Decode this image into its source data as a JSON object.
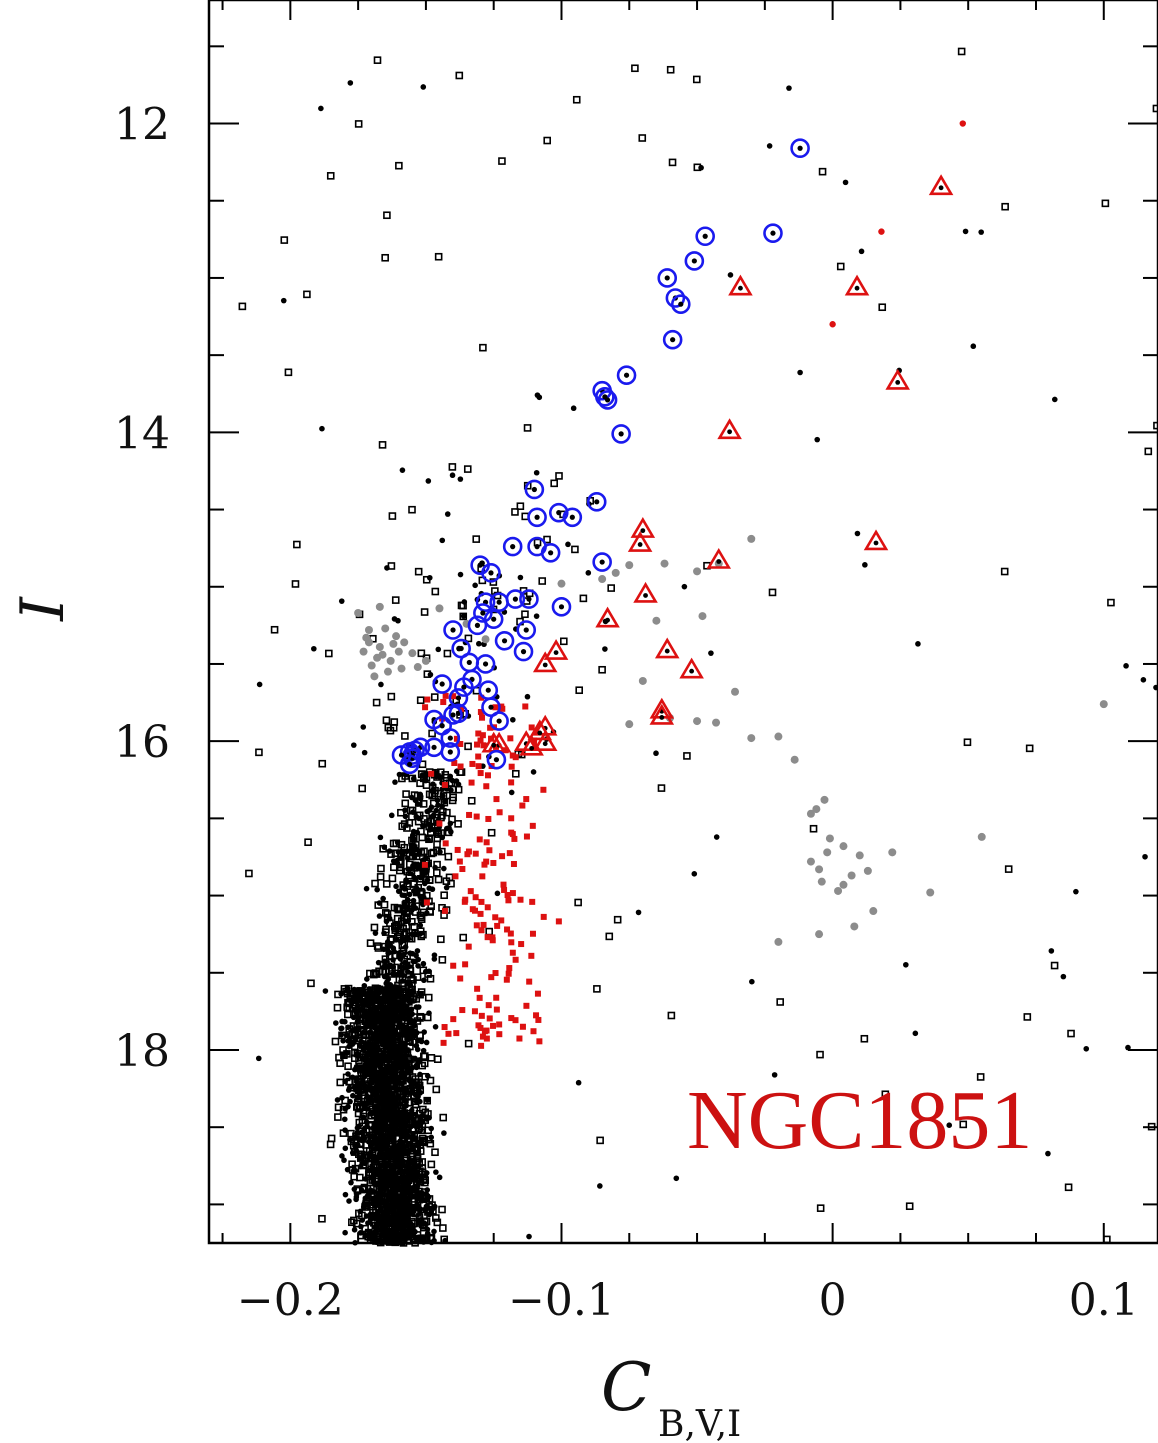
{
  "chart_data": {
    "type": "scatter",
    "title": "NGC1851",
    "xlabel": "C",
    "xlabel_subscript": "B,V,I",
    "ylabel": "I",
    "xlim": [
      -0.23,
      0.12
    ],
    "ylim": [
      19.25,
      11.2
    ],
    "y_inverted": true,
    "grid": false,
    "x_ticks": [
      -0.2,
      -0.1,
      0,
      0.1
    ],
    "x_tick_labels": [
      "−0.2",
      "−0.1",
      "0",
      "0.1"
    ],
    "y_ticks": [
      12,
      14,
      16,
      18
    ],
    "y_tick_labels": [
      "12",
      "14",
      "16",
      "18"
    ],
    "colors": {
      "black": "#000000",
      "red": "#dd1111",
      "blue": "#1a1aee",
      "gray": "#8c8c8c",
      "label": "#cc1111"
    },
    "series": [
      {
        "marker": "circled dot",
        "color": "blue",
        "points": [
          [
            -0.012,
            12.16
          ],
          [
            -0.022,
            12.71
          ],
          [
            -0.047,
            12.73
          ],
          [
            -0.051,
            12.89
          ],
          [
            -0.061,
            13.0
          ],
          [
            -0.058,
            13.13
          ],
          [
            -0.056,
            13.17
          ],
          [
            -0.059,
            13.4
          ],
          [
            -0.076,
            13.63
          ],
          [
            -0.085,
            13.73
          ],
          [
            -0.083,
            13.79
          ],
          [
            -0.084,
            13.77
          ],
          [
            -0.078,
            14.01
          ],
          [
            -0.11,
            14.37
          ],
          [
            -0.087,
            14.45
          ],
          [
            -0.109,
            14.55
          ],
          [
            -0.101,
            14.52
          ],
          [
            -0.096,
            14.55
          ],
          [
            -0.118,
            14.74
          ],
          [
            -0.109,
            14.74
          ],
          [
            -0.104,
            14.78
          ],
          [
            -0.085,
            14.84
          ],
          [
            -0.13,
            14.86
          ],
          [
            -0.126,
            14.91
          ],
          [
            -0.128,
            15.1
          ],
          [
            -0.123,
            15.1
          ],
          [
            -0.117,
            15.08
          ],
          [
            -0.112,
            15.08
          ],
          [
            -0.1,
            15.13
          ],
          [
            -0.129,
            15.17
          ],
          [
            -0.125,
            15.21
          ],
          [
            -0.113,
            15.28
          ],
          [
            -0.131,
            15.25
          ],
          [
            -0.14,
            15.28
          ],
          [
            -0.121,
            15.35
          ],
          [
            -0.137,
            15.4
          ],
          [
            -0.114,
            15.42
          ],
          [
            -0.128,
            15.5
          ],
          [
            -0.134,
            15.49
          ],
          [
            -0.133,
            15.6
          ],
          [
            -0.136,
            15.65
          ],
          [
            -0.144,
            15.63
          ],
          [
            -0.127,
            15.67
          ],
          [
            -0.138,
            15.72
          ],
          [
            -0.126,
            15.78
          ],
          [
            -0.138,
            15.82
          ],
          [
            -0.14,
            15.83
          ],
          [
            -0.123,
            15.87
          ],
          [
            -0.147,
            15.86
          ],
          [
            -0.144,
            15.9
          ],
          [
            -0.141,
            15.98
          ],
          [
            -0.147,
            16.04
          ],
          [
            -0.152,
            16.04
          ],
          [
            -0.154,
            16.06
          ],
          [
            -0.156,
            16.07
          ],
          [
            -0.155,
            16.09
          ],
          [
            -0.141,
            16.07
          ],
          [
            -0.155,
            16.11
          ],
          [
            -0.124,
            16.12
          ],
          [
            -0.156,
            16.15
          ],
          [
            -0.159,
            16.09
          ]
        ]
      },
      {
        "marker": "open triangle",
        "color": "red",
        "points": [
          [
            0.04,
            12.41
          ],
          [
            -0.034,
            13.06
          ],
          [
            0.009,
            13.06
          ],
          [
            0.024,
            13.67
          ],
          [
            -0.038,
            13.99
          ],
          [
            -0.07,
            14.63
          ],
          [
            -0.071,
            14.72
          ],
          [
            0.016,
            14.71
          ],
          [
            -0.042,
            14.83
          ],
          [
            -0.083,
            15.21
          ],
          [
            -0.069,
            15.05
          ],
          [
            -0.061,
            15.41
          ],
          [
            -0.052,
            15.54
          ],
          [
            -0.102,
            15.42
          ],
          [
            -0.106,
            15.5
          ],
          [
            -0.063,
            15.8
          ],
          [
            -0.063,
            15.84
          ],
          [
            -0.106,
            15.91
          ],
          [
            -0.108,
            15.94
          ],
          [
            -0.113,
            16.01
          ],
          [
            -0.106,
            16.01
          ],
          [
            -0.111,
            16.04
          ],
          [
            -0.123,
            16.02
          ],
          [
            -0.125,
            16.02
          ]
        ]
      },
      {
        "marker": "filled dot",
        "color": "gray",
        "points": [
          [
            -0.175,
            15.17
          ],
          [
            -0.171,
            15.28
          ],
          [
            -0.172,
            15.33
          ],
          [
            -0.167,
            15.39
          ],
          [
            -0.166,
            15.44
          ],
          [
            -0.163,
            15.48
          ],
          [
            -0.159,
            15.53
          ],
          [
            -0.173,
            15.42
          ],
          [
            -0.168,
            15.46
          ],
          [
            -0.162,
            15.37
          ],
          [
            -0.16,
            15.42
          ],
          [
            -0.158,
            15.36
          ],
          [
            -0.165,
            15.27
          ],
          [
            -0.17,
            15.51
          ],
          [
            -0.164,
            15.55
          ],
          [
            -0.161,
            15.32
          ],
          [
            -0.167,
            15.13
          ],
          [
            -0.171,
            15.36
          ],
          [
            -0.169,
            15.58
          ],
          [
            -0.155,
            15.43
          ],
          [
            -0.153,
            15.52
          ],
          [
            -0.15,
            15.48
          ],
          [
            -0.145,
            15.14
          ],
          [
            -0.135,
            15.24
          ],
          [
            -0.128,
            15.34
          ],
          [
            -0.1,
            14.98
          ],
          [
            -0.085,
            14.95
          ],
          [
            -0.08,
            14.91
          ],
          [
            -0.075,
            14.86
          ],
          [
            -0.062,
            14.85
          ],
          [
            -0.05,
            14.9
          ],
          [
            -0.042,
            14.85
          ],
          [
            -0.03,
            14.69
          ],
          [
            -0.048,
            15.19
          ],
          [
            -0.065,
            15.22
          ],
          [
            -0.07,
            15.61
          ],
          [
            -0.075,
            15.89
          ],
          [
            -0.06,
            15.85
          ],
          [
            -0.05,
            15.87
          ],
          [
            -0.043,
            15.88
          ],
          [
            -0.036,
            15.68
          ],
          [
            -0.03,
            15.98
          ],
          [
            -0.02,
            15.97
          ],
          [
            -0.014,
            16.12
          ],
          [
            -0.008,
            16.47
          ],
          [
            -0.006,
            16.44
          ],
          [
            -0.003,
            16.38
          ],
          [
            0.01,
            16.74
          ],
          [
            0.004,
            16.68
          ],
          [
            -0.001,
            16.63
          ],
          [
            -0.002,
            16.72
          ],
          [
            -0.005,
            16.83
          ],
          [
            -0.008,
            16.78
          ],
          [
            -0.004,
            16.91
          ],
          [
            0.002,
            16.97
          ],
          [
            0.004,
            16.93
          ],
          [
            0.007,
            16.87
          ],
          [
            0.013,
            16.84
          ],
          [
            0.022,
            16.72
          ],
          [
            0.036,
            16.98
          ],
          [
            0.015,
            17.1
          ],
          [
            0.008,
            17.2
          ],
          [
            -0.005,
            17.25
          ],
          [
            -0.02,
            17.3
          ],
          [
            0.1,
            15.76
          ],
          [
            0.055,
            16.62
          ]
        ]
      }
    ],
    "other_points": "black and red field/main-sequence stars densely populated near C≈-0.16 for I 16–19.25"
  }
}
